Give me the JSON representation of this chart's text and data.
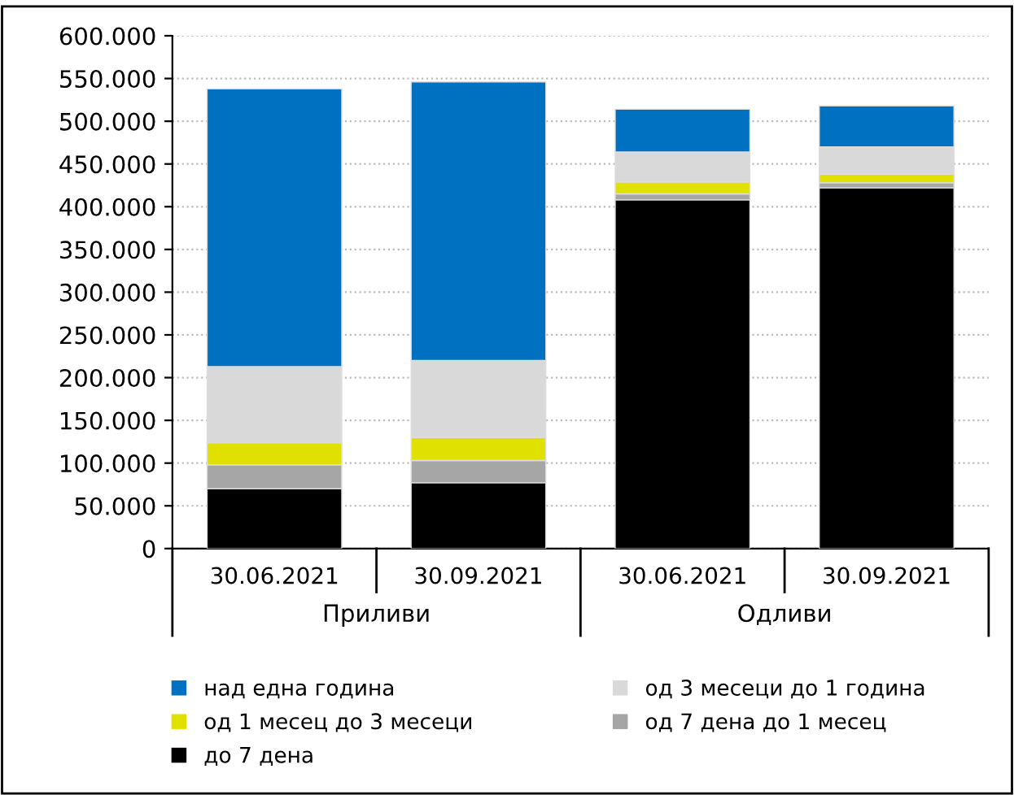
{
  "chart_data": {
    "type": "bar",
    "stacked": true,
    "categories": [
      "30.06.2021",
      "30.09.2021",
      "30.06.2021",
      "30.09.2021"
    ],
    "annotations": [
      "Приливи",
      "Одливи"
    ],
    "series": [
      {
        "name": "до 7 дена",
        "color": "#000000",
        "values": [
          70000,
          77000,
          408000,
          422000
        ]
      },
      {
        "name": "од 7 дена до 1 месец",
        "color": "#a6a6a6",
        "values": [
          28000,
          26000,
          7000,
          6000
        ]
      },
      {
        "name": "од 1 месец до 3 месеци",
        "color": "#e1e100",
        "values": [
          26000,
          27000,
          14000,
          10000
        ]
      },
      {
        "name": "од 3 месеци до 1 година",
        "color": "#d9d9d9",
        "values": [
          89000,
          90000,
          35000,
          32000
        ]
      },
      {
        "name": "над една година",
        "color": "#0070c0",
        "values": [
          325000,
          326000,
          50000,
          48000
        ]
      }
    ],
    "ylim": [
      0,
      600000
    ],
    "yticks": [
      0,
      {
        "value": 50000,
        "label": "50.000"
      },
      {
        "value": 100000,
        "label": "100.000"
      },
      {
        "value": 150000,
        "label": "150.000"
      },
      {
        "value": 200000,
        "label": "200.000"
      },
      {
        "value": 250000,
        "label": "250.000"
      },
      {
        "value": 300000,
        "label": "300.000"
      },
      {
        "value": 350000,
        "label": "350.000"
      },
      {
        "value": 400000,
        "label": "400.000"
      },
      {
        "value": 450000,
        "label": "450.000"
      },
      {
        "value": 500000,
        "label": "500.000"
      },
      {
        "value": 550000,
        "label": "550.000"
      },
      {
        "value": 600000,
        "label": "600.000"
      }
    ],
    "grid": "y",
    "legend": "bottom"
  }
}
